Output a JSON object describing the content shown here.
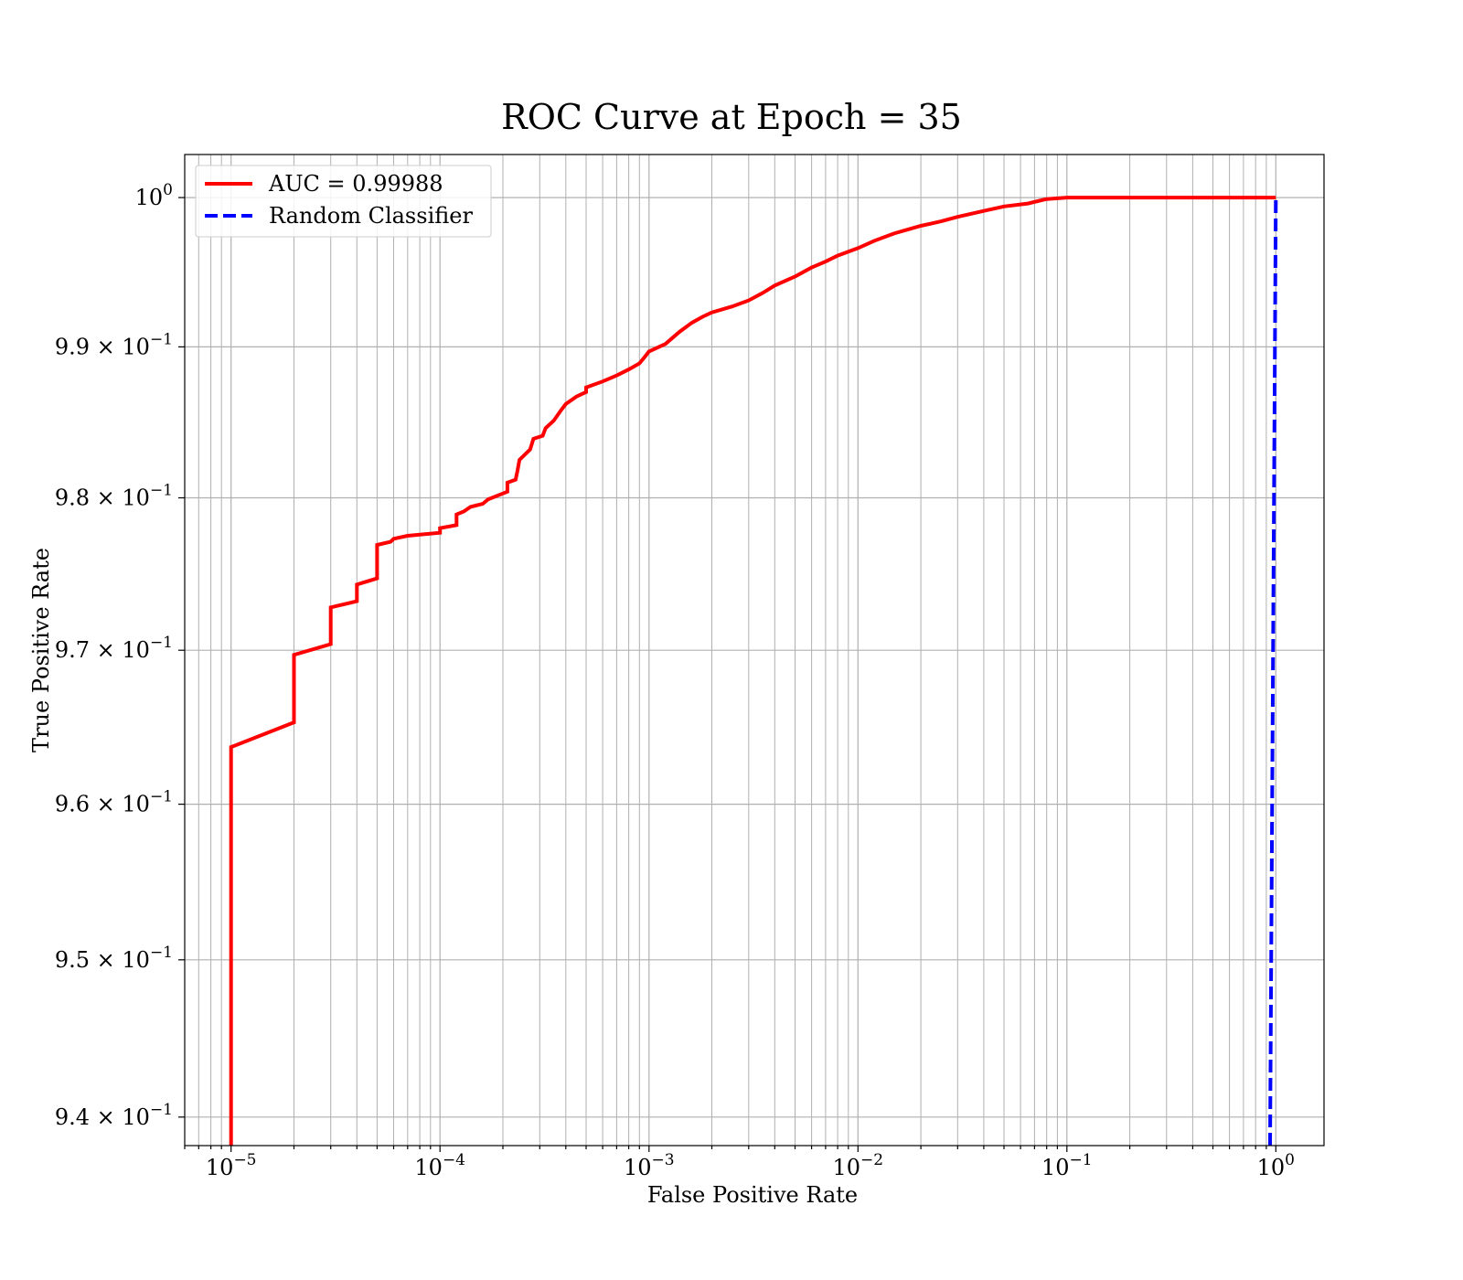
{
  "chart_data": {
    "type": "line",
    "title": "ROC Curve at Epoch = 35",
    "xlabel": "False Positive Rate",
    "ylabel": "True Positive Rate",
    "xscale": "log",
    "yscale": "log",
    "xlim": [
      6e-06,
      1.7
    ],
    "ylim": [
      0.9382,
      1.0029
    ],
    "grid": "on (major and minor)",
    "legend_position": "upper-left",
    "x_ticks": [
      {
        "value": 1e-05,
        "base": "10",
        "exp": "−5"
      },
      {
        "value": 0.0001,
        "base": "10",
        "exp": "−4"
      },
      {
        "value": 0.001,
        "base": "10",
        "exp": "−3"
      },
      {
        "value": 0.01,
        "base": "10",
        "exp": "−2"
      },
      {
        "value": 0.1,
        "base": "10",
        "exp": "−1"
      },
      {
        "value": 1,
        "base": "10",
        "exp": "0"
      }
    ],
    "y_ticks": [
      {
        "value": 1.0,
        "mant": "",
        "base": "10",
        "exp": "0"
      },
      {
        "value": 0.99,
        "mant": "9.9 × ",
        "base": "10",
        "exp": "−1"
      },
      {
        "value": 0.98,
        "mant": "9.8 × ",
        "base": "10",
        "exp": "−1"
      },
      {
        "value": 0.97,
        "mant": "9.7 × ",
        "base": "10",
        "exp": "−1"
      },
      {
        "value": 0.96,
        "mant": "9.6 × ",
        "base": "10",
        "exp": "−1"
      },
      {
        "value": 0.95,
        "mant": "9.5 × ",
        "base": "10",
        "exp": "−1"
      },
      {
        "value": 0.94,
        "mant": "9.4 × ",
        "base": "10",
        "exp": "−1"
      }
    ],
    "series": [
      {
        "name": "AUC = 0.99988",
        "color": "#ff0000",
        "style": "solid",
        "points": [
          [
            1e-05,
            0.9382
          ],
          [
            1e-05,
            0.9637
          ],
          [
            2e-05,
            0.9653
          ],
          [
            2e-05,
            0.9697
          ],
          [
            3e-05,
            0.9704
          ],
          [
            3e-05,
            0.9728
          ],
          [
            4e-05,
            0.9732
          ],
          [
            4e-05,
            0.9743
          ],
          [
            5e-05,
            0.9747
          ],
          [
            5e-05,
            0.9769
          ],
          [
            5.8e-05,
            0.9771
          ],
          [
            6e-05,
            0.9773
          ],
          [
            7e-05,
            0.9775
          ],
          [
            0.0001,
            0.9777
          ],
          [
            0.0001,
            0.978
          ],
          [
            0.00012,
            0.9782
          ],
          [
            0.00012,
            0.9789
          ],
          [
            0.00013,
            0.9791
          ],
          [
            0.00014,
            0.9794
          ],
          [
            0.00016,
            0.9796
          ],
          [
            0.00017,
            0.9799
          ],
          [
            0.00021,
            0.9804
          ],
          [
            0.00021,
            0.981
          ],
          [
            0.00023,
            0.9812
          ],
          [
            0.000235,
            0.9818
          ],
          [
            0.00024,
            0.9825
          ],
          [
            0.00027,
            0.9832
          ],
          [
            0.00028,
            0.9839
          ],
          [
            0.00031,
            0.9841
          ],
          [
            0.00032,
            0.9846
          ],
          [
            0.00035,
            0.9851
          ],
          [
            0.00038,
            0.9858
          ],
          [
            0.0004,
            0.9862
          ],
          [
            0.00045,
            0.9867
          ],
          [
            0.0005,
            0.987
          ],
          [
            0.0005,
            0.9873
          ],
          [
            0.0006,
            0.9877
          ],
          [
            0.0007,
            0.9881
          ],
          [
            0.0008,
            0.9885
          ],
          [
            0.0009,
            0.9889
          ],
          [
            0.00095,
            0.9893
          ],
          [
            0.001,
            0.9897
          ],
          [
            0.0012,
            0.9902
          ],
          [
            0.0014,
            0.991
          ],
          [
            0.0016,
            0.9916
          ],
          [
            0.0018,
            0.992
          ],
          [
            0.002,
            0.9923
          ],
          [
            0.0025,
            0.9927
          ],
          [
            0.003,
            0.9931
          ],
          [
            0.0035,
            0.9936
          ],
          [
            0.004,
            0.9941
          ],
          [
            0.005,
            0.9947
          ],
          [
            0.006,
            0.9953
          ],
          [
            0.007,
            0.9957
          ],
          [
            0.008,
            0.9961
          ],
          [
            0.01,
            0.9966
          ],
          [
            0.012,
            0.9971
          ],
          [
            0.015,
            0.9976
          ],
          [
            0.02,
            0.9981
          ],
          [
            0.025,
            0.9984
          ],
          [
            0.03,
            0.9987
          ],
          [
            0.04,
            0.9991
          ],
          [
            0.05,
            0.9994
          ],
          [
            0.065,
            0.9996
          ],
          [
            0.08,
            0.9999
          ],
          [
            0.1,
            1.0
          ],
          [
            1.0,
            1.0
          ]
        ]
      },
      {
        "name": "Random Classifier",
        "color": "#0000ff",
        "style": "dashed",
        "points": [
          [
            0.9382,
            0.9382
          ],
          [
            1.0,
            1.0
          ]
        ]
      }
    ]
  }
}
